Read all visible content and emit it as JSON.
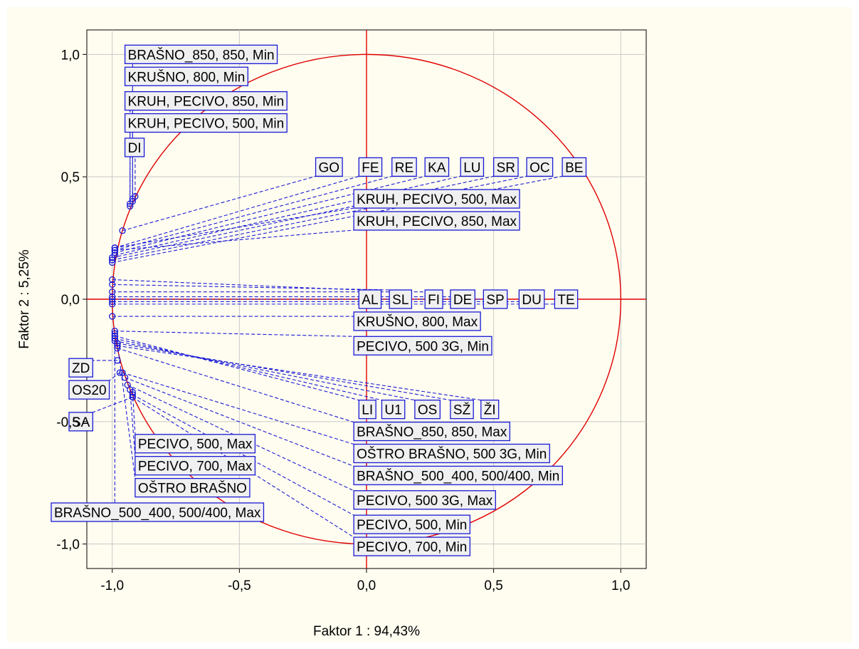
{
  "chart_data": {
    "type": "scatter",
    "xlabel": "Faktor 1 : 94,43%",
    "ylabel": "Faktor 2 :  5,25%",
    "xlim": [
      -1.1,
      1.1
    ],
    "ylim": [
      -1.1,
      1.1
    ],
    "xticks": [
      -1.0,
      -0.5,
      0.0,
      0.5,
      1.0
    ],
    "yticks": [
      -1.0,
      -0.5,
      0.0,
      0.5,
      1.0
    ],
    "xtick_labels": [
      "-1,0",
      "-0,5",
      "0,0",
      "0,5",
      "1,0"
    ],
    "ytick_labels": [
      "-1,0",
      "-0,5",
      "0,0",
      "0,5",
      "1,0"
    ],
    "grid": true,
    "unit_circle": true,
    "colors": {
      "circle": "#e00000",
      "points": "#1a1ad6",
      "leaders": "#1a1ad6",
      "label_border": "#1a1ad6",
      "label_fill": "#f0f0f0",
      "background": "#fffdf0"
    },
    "points": [
      {
        "name": "BRAŠNO_850, 850, Min",
        "x": -0.92,
        "y": 0.41,
        "label_x": -0.95,
        "label_y": 1.0
      },
      {
        "name": "KRUŠNO, 800, Min",
        "x": -0.92,
        "y": 0.4,
        "label_x": -0.95,
        "label_y": 0.91
      },
      {
        "name": "KRUH, PECIVO, 850, Min",
        "x": -0.93,
        "y": 0.39,
        "label_x": -0.95,
        "label_y": 0.81
      },
      {
        "name": "KRUH, PECIVO, 500, Min",
        "x": -0.93,
        "y": 0.38,
        "label_x": -0.95,
        "label_y": 0.72
      },
      {
        "name": "DI",
        "x": -0.91,
        "y": 0.42,
        "label_x": -0.95,
        "label_y": 0.62
      },
      {
        "name": "GO",
        "x": -0.96,
        "y": 0.28,
        "label_x": -0.2,
        "label_y": 0.54
      },
      {
        "name": "FE",
        "x": -0.99,
        "y": 0.21,
        "label_x": -0.03,
        "label_y": 0.54
      },
      {
        "name": "RE",
        "x": -0.99,
        "y": 0.2,
        "label_x": 0.1,
        "label_y": 0.54
      },
      {
        "name": "KA",
        "x": -0.99,
        "y": 0.19,
        "label_x": 0.23,
        "label_y": 0.54
      },
      {
        "name": "LU",
        "x": -0.99,
        "y": 0.18,
        "label_x": 0.37,
        "label_y": 0.54
      },
      {
        "name": "SR",
        "x": -1.0,
        "y": 0.17,
        "label_x": 0.5,
        "label_y": 0.54
      },
      {
        "name": "OC",
        "x": -1.0,
        "y": 0.16,
        "label_x": 0.63,
        "label_y": 0.54
      },
      {
        "name": "BE",
        "x": -1.0,
        "y": 0.15,
        "label_x": 0.77,
        "label_y": 0.54
      },
      {
        "name": "KRUH, PECIVO, 500, Max",
        "x": -0.99,
        "y": 0.21,
        "label_x": -0.05,
        "label_y": 0.41
      },
      {
        "name": "KRUH, PECIVO, 850, Max",
        "x": -0.99,
        "y": 0.2,
        "label_x": -0.05,
        "label_y": 0.32
      },
      {
        "name": "AL",
        "x": -1.0,
        "y": 0.08,
        "label_x": -0.03,
        "label_y": 0.0
      },
      {
        "name": "SL",
        "x": -1.0,
        "y": 0.06,
        "label_x": 0.09,
        "label_y": 0.0
      },
      {
        "name": "FI",
        "x": -1.0,
        "y": 0.03,
        "label_x": 0.23,
        "label_y": 0.0
      },
      {
        "name": "DE",
        "x": -1.0,
        "y": 0.01,
        "label_x": 0.33,
        "label_y": 0.0
      },
      {
        "name": "SP",
        "x": -1.0,
        "y": 0.0,
        "label_x": 0.46,
        "label_y": 0.0
      },
      {
        "name": "DU",
        "x": -1.0,
        "y": -0.01,
        "label_x": 0.6,
        "label_y": 0.0
      },
      {
        "name": "TE",
        "x": -1.0,
        "y": -0.02,
        "label_x": 0.74,
        "label_y": 0.0
      },
      {
        "name": "KRUŠNO, 800, Max",
        "x": -1.0,
        "y": -0.07,
        "label_x": -0.05,
        "label_y": -0.09
      },
      {
        "name": "PECIVO, 500 3G, Min",
        "x": -0.99,
        "y": -0.13,
        "label_x": -0.05,
        "label_y": -0.19
      },
      {
        "name": "ZD",
        "x": -0.98,
        "y": -0.25,
        "label_x": -1.17,
        "label_y": -0.28
      },
      {
        "name": "OS20",
        "x": -0.97,
        "y": -0.3,
        "label_x": -1.17,
        "label_y": -0.37
      },
      {
        "name": "SA",
        "x": -0.92,
        "y": -0.4,
        "label_x": -1.17,
        "label_y": -0.5
      },
      {
        "name": "LI",
        "x": -0.99,
        "y": -0.15,
        "label_x": -0.03,
        "label_y": -0.45
      },
      {
        "name": "U1",
        "x": -0.99,
        "y": -0.16,
        "label_x": 0.06,
        "label_y": -0.45
      },
      {
        "name": "OS",
        "x": -0.99,
        "y": -0.17,
        "label_x": 0.19,
        "label_y": -0.45
      },
      {
        "name": "SŽ",
        "x": -0.98,
        "y": -0.18,
        "label_x": 0.33,
        "label_y": -0.45
      },
      {
        "name": "ŽI",
        "x": -0.98,
        "y": -0.19,
        "label_x": 0.45,
        "label_y": -0.45
      },
      {
        "name": "BRAŠNO_850, 850, Max",
        "x": -0.98,
        "y": -0.2,
        "label_x": -0.05,
        "label_y": -0.54
      },
      {
        "name": "OŠTRO BRAŠNO, 500 3G, Min",
        "x": -0.96,
        "y": -0.3,
        "label_x": -0.05,
        "label_y": -0.63
      },
      {
        "name": "BRAŠNO_500_400, 500/400, Min",
        "x": -0.95,
        "y": -0.32,
        "label_x": -0.05,
        "label_y": -0.72
      },
      {
        "name": "PECIVO, 500 3G, Max",
        "x": -0.94,
        "y": -0.35,
        "label_x": -0.05,
        "label_y": -0.82
      },
      {
        "name": "PECIVO, 500, Min",
        "x": -0.92,
        "y": -0.39,
        "label_x": -0.05,
        "label_y": -0.92
      },
      {
        "name": "PECIVO, 700, Min",
        "x": -0.92,
        "y": -0.4,
        "label_x": -0.05,
        "label_y": -1.01
      },
      {
        "name": "PECIVO, 500, Max",
        "x": -0.92,
        "y": -0.38,
        "label_x": -0.91,
        "label_y": -0.59
      },
      {
        "name": "PECIVO, 700, Max",
        "x": -0.93,
        "y": -0.37,
        "label_x": -0.91,
        "label_y": -0.68
      },
      {
        "name": "OŠTRO BRAŠNO",
        "x": -0.98,
        "y": -0.18,
        "label_x": -0.91,
        "label_y": -0.77
      },
      {
        "name": "BRAŠNO_500_400, 500/400, Max",
        "x": -0.99,
        "y": -0.14,
        "label_x": -1.24,
        "label_y": -0.87
      }
    ]
  }
}
